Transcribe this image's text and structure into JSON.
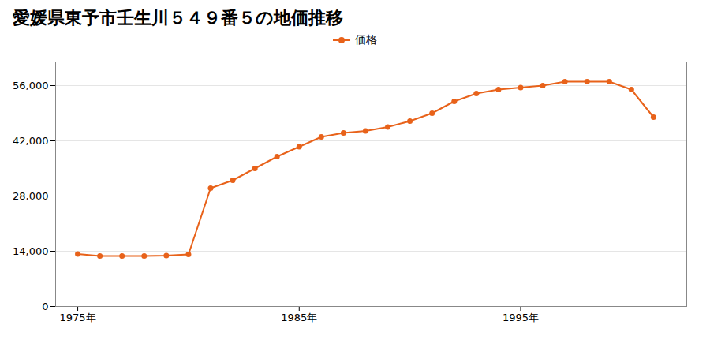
{
  "chart_data": {
    "type": "line",
    "title": "愛媛県東予市壬生川５４９番５の地価推移",
    "x": [
      1975,
      1976,
      1977,
      1978,
      1979,
      1980,
      1981,
      1982,
      1983,
      1984,
      1985,
      1986,
      1987,
      1988,
      1989,
      1990,
      1991,
      1992,
      1993,
      1994,
      1995,
      1996,
      1997,
      1998,
      1999,
      2000,
      2001
    ],
    "series": [
      {
        "name": "価格",
        "color": "#e8621a",
        "marker": "circle",
        "values": [
          13300,
          12800,
          12800,
          12800,
          12900,
          13200,
          30000,
          32000,
          35000,
          38000,
          40500,
          43000,
          44000,
          44500,
          45500,
          47000,
          49000,
          52000,
          54000,
          55000,
          55500,
          56000,
          57000,
          57000,
          57000,
          55000,
          48000
        ]
      }
    ],
    "xlim": [
      1974,
      2002.5
    ],
    "xticks": [
      {
        "value": 1975,
        "label": "1975年"
      },
      {
        "value": 1985,
        "label": "1985年"
      },
      {
        "value": 1995,
        "label": "1995年"
      }
    ],
    "ylim": [
      0,
      62000
    ],
    "yticks": [
      0,
      {
        "value": 14000,
        "label": "14,000"
      },
      {
        "value": 28000,
        "label": "28,000"
      },
      {
        "value": 42000,
        "label": "42,000"
      },
      {
        "value": 56000,
        "label": "56,000"
      }
    ],
    "grid": true,
    "legend": "top"
  }
}
